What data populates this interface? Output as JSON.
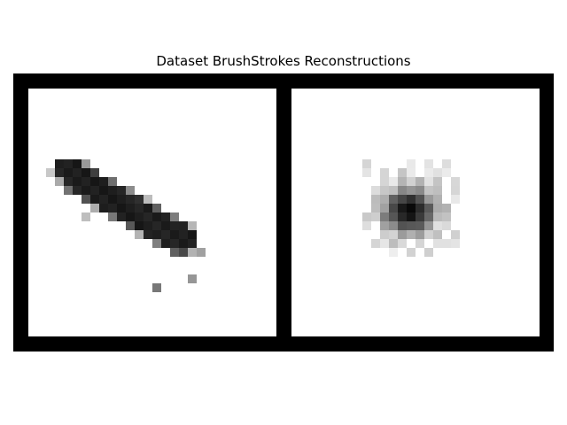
{
  "figure": {
    "title": "Dataset BrushStrokes Reconstructions"
  },
  "image_grid": {
    "background_color": "#000000",
    "cell_background": "#ffffff",
    "stroke_color": "#111111",
    "panels": [
      {
        "content": "dataset-sample-brush-stroke"
      },
      {
        "content": "model-reconstruction-blurred-blob"
      }
    ]
  }
}
